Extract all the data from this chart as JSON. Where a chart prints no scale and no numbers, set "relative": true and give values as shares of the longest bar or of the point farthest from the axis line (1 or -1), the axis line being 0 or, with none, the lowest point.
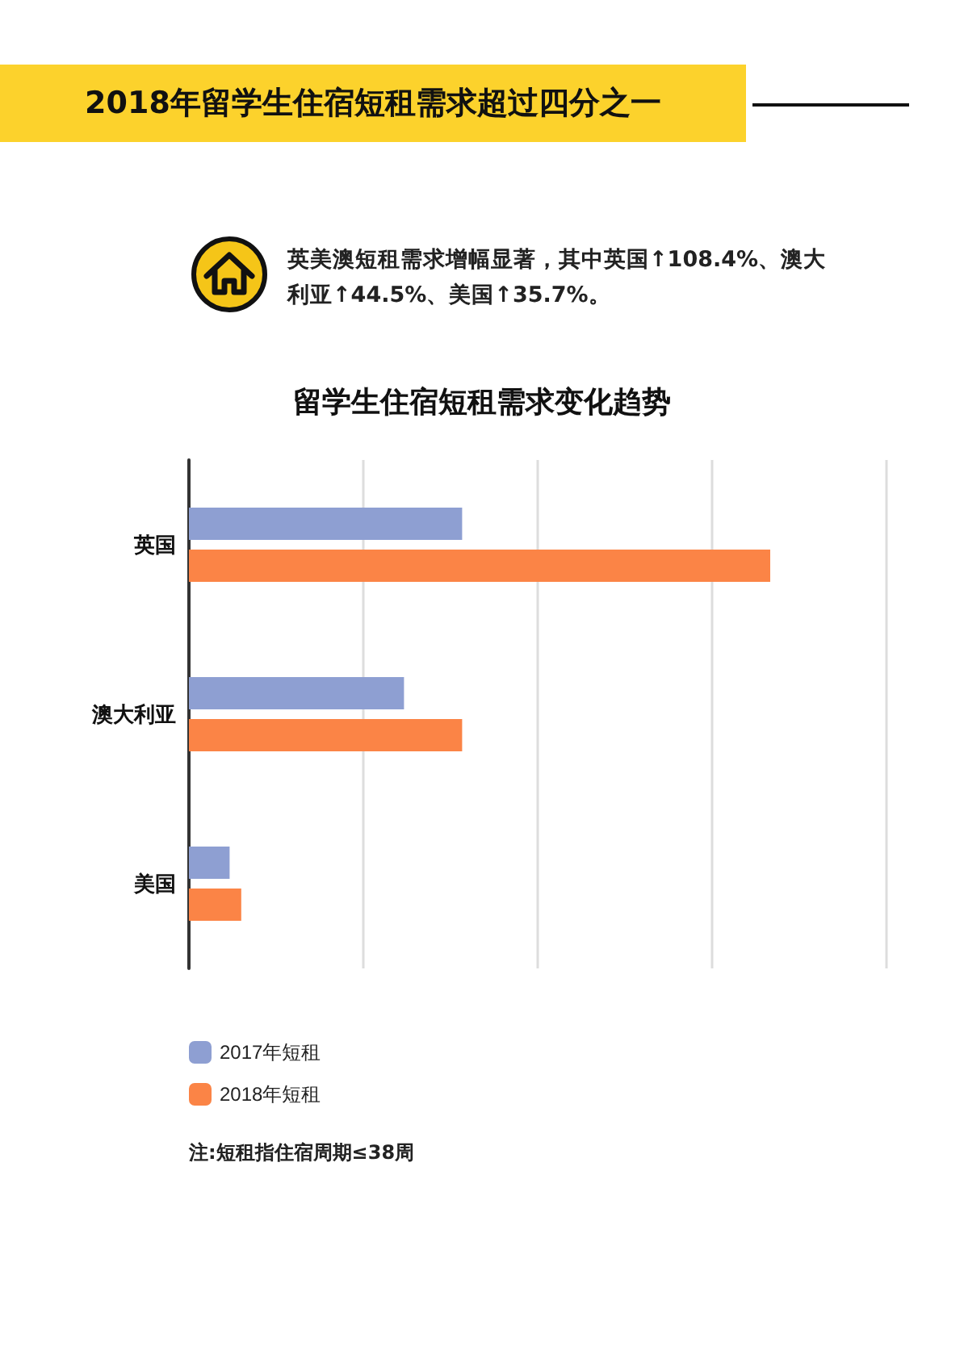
{
  "chart_data": {
    "type": "bar",
    "orientation": "horizontal",
    "relative": true,
    "title": "2018年留学生住宿短租需求超过四分之一",
    "subtitle": "留学生住宿短租需求变化趋势",
    "annotations": [
      "英美澳短租需求增幅显著，其中英国↑108.4%、澳大利亚↑44.5%、美国↑35.7%。",
      "注:短租指住宿周期≤38周"
    ],
    "categories": [
      "英国",
      "澳大利亚",
      "美国"
    ],
    "series": [
      {
        "name": "2017年短租",
        "color": "#8e9fd2",
        "values": [
          0.47,
          0.37,
          0.07
        ]
      },
      {
        "name": "2018年短租",
        "color": "#fb8446",
        "values": [
          1,
          0.47,
          0.09
        ]
      }
    ],
    "grid": "x",
    "legend": "bottom left"
  }
}
